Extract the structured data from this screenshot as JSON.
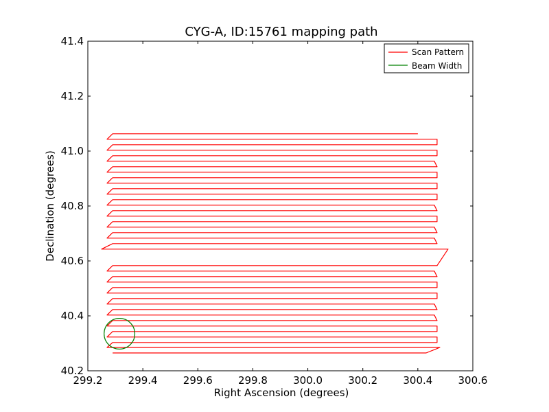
{
  "chart_data": {
    "type": "line",
    "title": "CYG-A, ID:15761 mapping path",
    "xlabel": "Right Ascension (degrees)",
    "ylabel": "Declination (degrees)",
    "xlim": [
      299.2,
      300.6
    ],
    "ylim": [
      40.2,
      41.4
    ],
    "xticks": [
      299.2,
      299.4,
      299.6,
      299.8,
      300.0,
      300.2,
      300.4,
      300.6
    ],
    "yticks": [
      40.2,
      40.4,
      40.6,
      40.8,
      41.0,
      41.2,
      41.4
    ],
    "xtick_labels": [
      "299.2",
      "299.4",
      "299.6",
      "299.8",
      "300.0",
      "300.2",
      "300.4",
      "300.6"
    ],
    "ytick_labels": [
      "40.2",
      "40.4",
      "40.6",
      "40.8",
      "41.0",
      "41.2",
      "41.4"
    ],
    "grid": false,
    "legend_position": "top-right",
    "series": [
      {
        "name": "Scan Pattern",
        "color": "#ff0000",
        "x": [
          299.29,
          300.43,
          300.48,
          299.27,
          299.29,
          300.47,
          300.47,
          299.27,
          299.29,
          300.47,
          300.47,
          299.27,
          299.29,
          300.47,
          300.46,
          299.27,
          299.29,
          300.47,
          300.46,
          299.27,
          299.29,
          300.47,
          300.47,
          299.27,
          299.29,
          300.47,
          300.47,
          299.27,
          299.29,
          300.47,
          300.46,
          299.27,
          299.29,
          300.47,
          300.51,
          299.25,
          299.29,
          300.47,
          300.46,
          299.27,
          299.29,
          300.47,
          300.46,
          299.27,
          299.29,
          300.47,
          300.47,
          299.27,
          299.29,
          300.47,
          300.46,
          299.27,
          299.29,
          300.47,
          300.47,
          299.27,
          299.29,
          300.47,
          300.47,
          299.27,
          299.29,
          300.47,
          300.47,
          299.27,
          299.29,
          300.47,
          300.46,
          299.27,
          299.29,
          300.47,
          300.47,
          299.27,
          299.29,
          300.47,
          300.47,
          299.27,
          299.29,
          300.4
        ],
        "y": [
          40.265,
          40.265,
          40.285,
          40.285,
          40.303,
          40.303,
          40.323,
          40.323,
          40.343,
          40.343,
          40.363,
          40.363,
          40.383,
          40.383,
          40.403,
          40.403,
          40.423,
          40.423,
          40.443,
          40.443,
          40.463,
          40.463,
          40.483,
          40.483,
          40.503,
          40.503,
          40.523,
          40.523,
          40.543,
          40.543,
          40.563,
          40.563,
          40.583,
          40.583,
          40.643,
          40.643,
          40.663,
          40.663,
          40.683,
          40.683,
          40.703,
          40.703,
          40.723,
          40.723,
          40.743,
          40.743,
          40.763,
          40.763,
          40.783,
          40.783,
          40.803,
          40.803,
          40.823,
          40.823,
          40.843,
          40.843,
          40.863,
          40.863,
          40.883,
          40.883,
          40.903,
          40.903,
          40.923,
          40.923,
          40.943,
          40.943,
          40.963,
          40.963,
          40.983,
          40.983,
          41.003,
          41.003,
          41.023,
          41.023,
          41.043,
          41.043,
          41.063,
          41.063
        ]
      },
      {
        "name": "Beam Width",
        "color": "#008000",
        "shape": "circle",
        "center": [
          299.315,
          40.335
        ],
        "radius_y": 0.056
      }
    ]
  }
}
